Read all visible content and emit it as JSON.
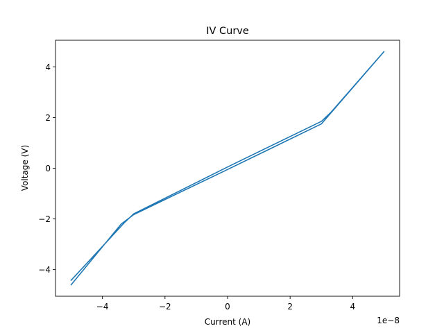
{
  "chart_data": {
    "type": "line",
    "title": "IV Curve",
    "xlabel": "Current (A)",
    "ylabel": "Voltage (V)",
    "x_offset_label": "1e−8",
    "x_scale": 1e-08,
    "xlim": [
      -5.5e-08,
      5.5e-08
    ],
    "ylim": [
      -5.05,
      5.05
    ],
    "x_ticks": [
      -4e-08,
      -2e-08,
      0,
      2e-08,
      4e-08
    ],
    "x_tick_labels": [
      "−4",
      "−2",
      "0",
      "2",
      "4"
    ],
    "y_ticks": [
      -4,
      -2,
      0,
      2,
      4
    ],
    "y_tick_labels": [
      "−4",
      "−2",
      "0",
      "2",
      "4"
    ],
    "grid": false,
    "legend": false,
    "colors": {
      "line": "#1f77b4",
      "axes": "#000000",
      "background": "#ffffff"
    },
    "series": [
      {
        "x": [
          -5e-08,
          -3.4e-08,
          -3e-08,
          0,
          3e-08,
          5e-08,
          3.3e-08,
          3e-08,
          0,
          -3e-08,
          -3.3e-08,
          -5e-08
        ],
        "y": [
          -4.6,
          -2.2,
          -1.83,
          -0.05,
          1.75,
          4.6,
          2.2,
          1.85,
          0.05,
          -1.8,
          -2.15,
          -4.42
        ]
      }
    ]
  }
}
